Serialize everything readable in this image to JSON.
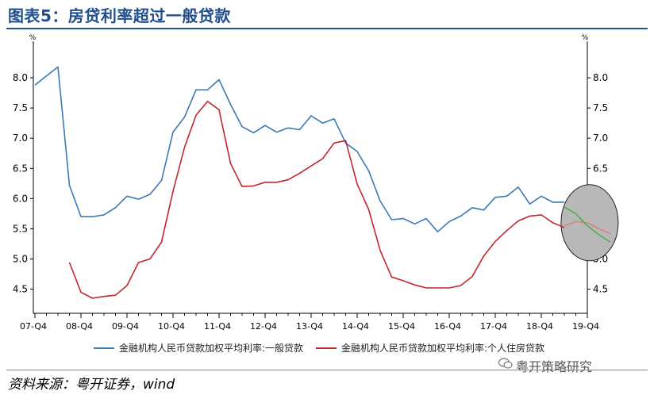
{
  "page": {
    "title": "图表5：房贷利率超过一般贷款",
    "source": "资料来源：粤开证券，wind",
    "watermark": "粤开策略研究"
  },
  "chart_data": {
    "type": "line",
    "y_unit_left": "%",
    "y_unit_right": "%",
    "ylim": [
      4.1,
      8.5
    ],
    "yticks": [
      4.5,
      5.0,
      5.5,
      6.0,
      6.5,
      7.0,
      7.5,
      8.0
    ],
    "ytick_labels": [
      "4.5",
      "5.0",
      "5.5",
      "6.0",
      "6.5",
      "7.0",
      "7.5",
      "8.0"
    ],
    "xtick_labels": [
      "07-Q4",
      "08-Q4",
      "09-Q4",
      "10-Q4",
      "11-Q4",
      "12-Q4",
      "13-Q4",
      "14-Q4",
      "15-Q4",
      "16-Q4",
      "17-Q4",
      "18-Q4",
      "19-Q4"
    ],
    "xlim_quarters": [
      0,
      48
    ],
    "grid": false,
    "legend_position": "bottom",
    "series": [
      {
        "name": "金融机构人民币贷款加权平均利率:一般贷款",
        "color": "#3b78b6",
        "x": [
          0,
          1,
          2,
          3,
          4,
          5,
          6,
          7,
          8,
          9,
          10,
          11,
          12,
          13,
          14,
          15,
          16,
          17,
          18,
          19,
          20,
          21,
          22,
          23,
          24,
          25,
          26,
          27,
          28,
          29,
          30,
          31,
          32,
          33,
          34,
          35,
          36,
          37,
          38,
          39,
          40,
          41,
          42,
          43,
          44,
          45,
          46
        ],
        "values": [
          7.88,
          8.03,
          8.18,
          6.22,
          5.7,
          5.7,
          5.73,
          5.85,
          6.04,
          5.99,
          6.07,
          6.3,
          7.1,
          7.35,
          7.8,
          7.8,
          7.97,
          7.56,
          7.19,
          7.09,
          7.21,
          7.1,
          7.17,
          7.14,
          7.37,
          7.25,
          7.32,
          6.92,
          6.78,
          6.46,
          5.96,
          5.65,
          5.67,
          5.58,
          5.67,
          5.45,
          5.62,
          5.71,
          5.85,
          5.81,
          6.02,
          6.04,
          6.19,
          5.91,
          6.04,
          5.94,
          5.94
        ]
      },
      {
        "name": "金融机构人民币贷款加权平均利率:个人住房贷款",
        "color": "#c0272d",
        "x": [
          3,
          4,
          5,
          6,
          7,
          8,
          9,
          10,
          11,
          12,
          13,
          14,
          15,
          16,
          17,
          18,
          19,
          20,
          21,
          22,
          23,
          24,
          25,
          26,
          27,
          28,
          29,
          30,
          31,
          32,
          33,
          34,
          35,
          36,
          37,
          38,
          39,
          40,
          41,
          42,
          43,
          44,
          45,
          46
        ],
        "values": [
          4.94,
          4.45,
          4.35,
          4.38,
          4.4,
          4.56,
          4.94,
          5.0,
          5.28,
          6.12,
          6.85,
          7.38,
          7.61,
          7.47,
          6.58,
          6.2,
          6.21,
          6.27,
          6.27,
          6.31,
          6.42,
          6.54,
          6.66,
          6.92,
          6.96,
          6.24,
          5.82,
          5.14,
          4.7,
          4.64,
          4.57,
          4.52,
          4.52,
          4.52,
          4.56,
          4.71,
          5.05,
          5.29,
          5.47,
          5.63,
          5.71,
          5.73,
          5.6,
          5.52
        ]
      }
    ],
    "projection": [
      {
        "name": "",
        "color": "#e07a7a",
        "x": [
          46,
          47,
          48,
          49,
          50
        ],
        "values": [
          5.55,
          5.62,
          5.6,
          5.5,
          5.42
        ]
      },
      {
        "name": "",
        "color": "#3db04b",
        "x": [
          46,
          47,
          48,
          49,
          50
        ],
        "values": [
          5.86,
          5.75,
          5.55,
          5.4,
          5.28
        ]
      }
    ],
    "highlight": {
      "shape": "ellipse",
      "fill": "#b8b8b8",
      "x_center": 48.2,
      "y_center": 5.6
    }
  }
}
